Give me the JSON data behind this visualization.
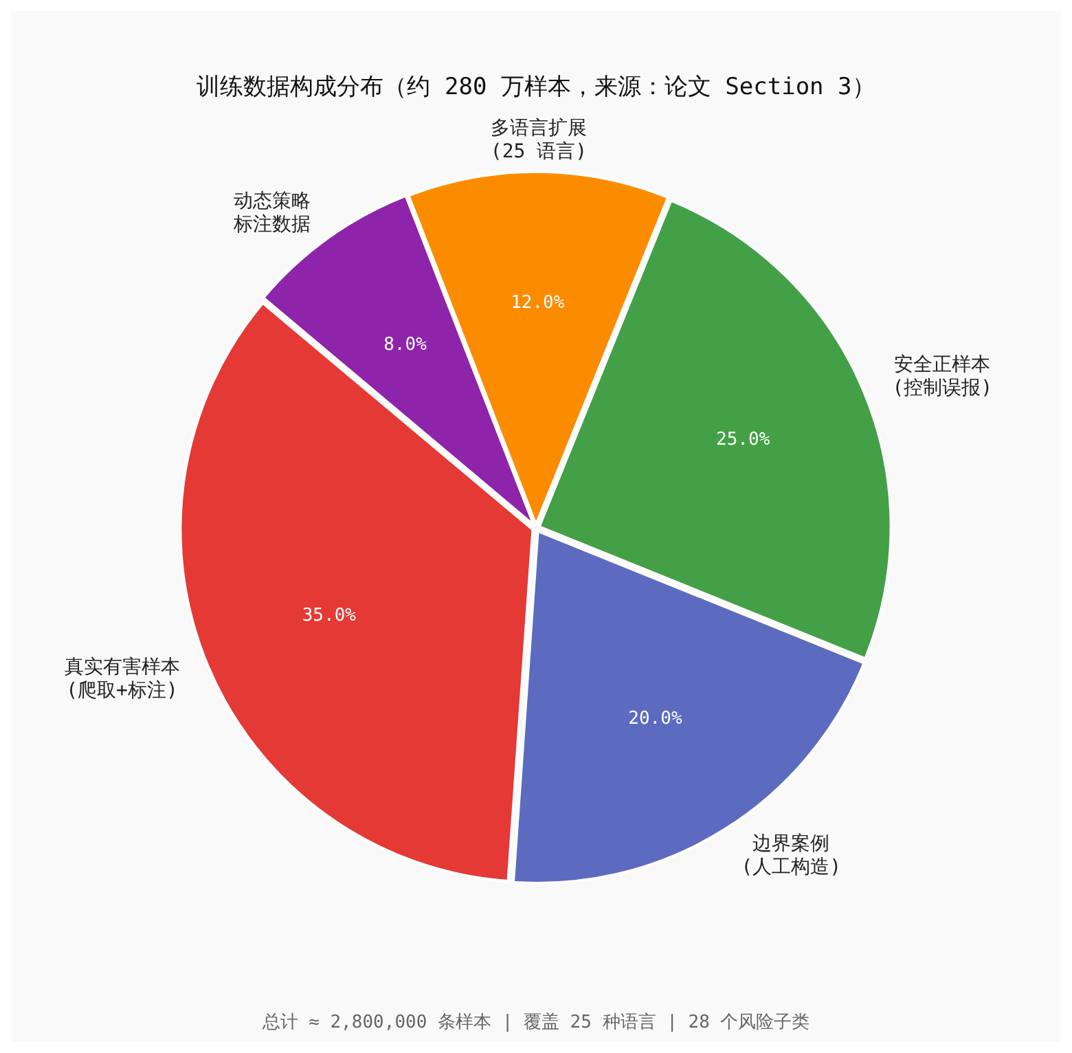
{
  "chart_data": {
    "type": "pie",
    "title": "训练数据构成分布（约 280 万样本，来源：论文 Section 3）",
    "categories": [
      "动态策略标注数据",
      "多语言扩展\n(25 语言)",
      "安全正样本\n(控制误报)",
      "边界案例\n(人工构造)",
      "真实有害样本\n(爬取+标注)"
    ],
    "values": [
      8,
      12,
      25,
      20,
      35
    ],
    "colors": [
      "#8e24aa",
      "#fb8c00",
      "#43a047",
      "#5c6bc0",
      "#e53935"
    ],
    "value_labels": [
      "8.0%",
      "12.0%",
      "25.0%",
      "20.0%",
      "35.0%"
    ],
    "legend": false,
    "annotations": [
      "总计 ≈ 2,800,000 条样本 | 覆盖 25 种语言 | 28 个风险子类"
    ]
  }
}
